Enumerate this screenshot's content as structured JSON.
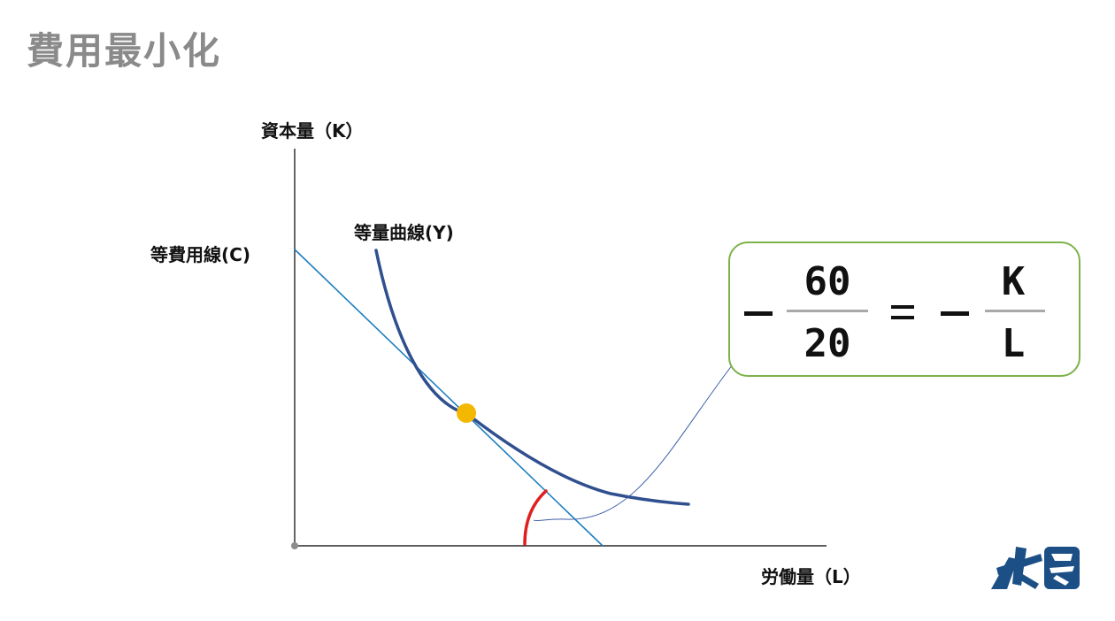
{
  "slide": {
    "title": "費用最小化"
  },
  "axes": {
    "y_label": "資本量（K）",
    "x_label": "労働量（L）"
  },
  "curves": {
    "isocost_label": "等費用線(C)",
    "isoquant_label": "等量曲線(Y)"
  },
  "formula": {
    "left_numerator": "60",
    "left_denominator": "20",
    "right_numerator": "K",
    "right_denominator": "L"
  },
  "colors": {
    "axis": "#000000",
    "isocost_line": "#1f7fbf",
    "isoquant_curve": "#2f4f8f",
    "tangent_point": "#f5b800",
    "angle_arc": "#e02020",
    "callout_border": "#7db24a",
    "logo": "#1c4f86",
    "title": "#8a8a8a"
  },
  "icons": {
    "logo": "school-logo-icon"
  }
}
